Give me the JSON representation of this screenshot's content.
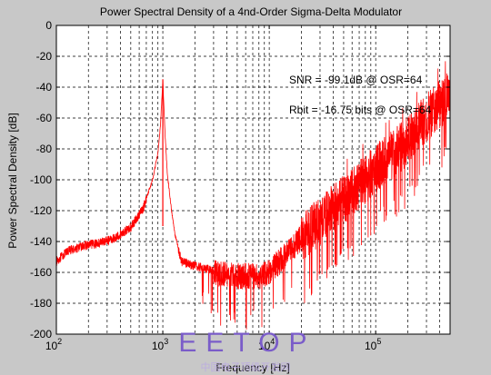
{
  "chart_data": {
    "type": "line",
    "title": "Power Spectral Density of a 4nd-Order Sigma-Delta Modulator",
    "xlabel": "Frequency [Hz]",
    "ylabel": "Power Spectral Density [dB]",
    "xscale": "log",
    "xlim": [
      100,
      500000
    ],
    "ylim": [
      -200,
      0
    ],
    "grid": true,
    "grid_style": "dashed",
    "x_ticks": [
      {
        "value": 100,
        "label": "10",
        "exp": "2"
      },
      {
        "value": 1000,
        "label": "10",
        "exp": "3"
      },
      {
        "value": 10000,
        "label": "10",
        "exp": "4"
      },
      {
        "value": 100000,
        "label": "10",
        "exp": "5"
      }
    ],
    "y_ticks": [
      {
        "value": 0,
        "label": "0"
      },
      {
        "value": -20,
        "label": "-20"
      },
      {
        "value": -40,
        "label": "-40"
      },
      {
        "value": -60,
        "label": "-60"
      },
      {
        "value": -80,
        "label": "-80"
      },
      {
        "value": -100,
        "label": "-100"
      },
      {
        "value": -120,
        "label": "-120"
      },
      {
        "value": -140,
        "label": "-140"
      },
      {
        "value": -160,
        "label": "-160"
      },
      {
        "value": -180,
        "label": "-180"
      },
      {
        "value": -200,
        "label": "-200"
      }
    ],
    "annotations": [
      {
        "text": "SNR = -99.1dB @ OSR=64",
        "x": 40000,
        "y": -35
      },
      {
        "text": "Rbit = -16.75 bits @ OSR=64",
        "x": 40000,
        "y": -55
      }
    ],
    "series": [
      {
        "color": "#ff0000",
        "signal_peak": {
          "x": 1000,
          "y": -35
        },
        "x": [
          100,
          130,
          180,
          250,
          350,
          500,
          650,
          800,
          900,
          950,
          1000,
          1050,
          1100,
          1200,
          1300,
          1500,
          2000,
          3000,
          5000,
          8000,
          10000,
          12000,
          15000,
          20000,
          30000,
          50000,
          80000,
          100000,
          150000,
          200000,
          300000,
          500000
        ],
        "y": [
          -152,
          -145,
          -142,
          -140,
          -137,
          -130,
          -118,
          -100,
          -82,
          -65,
          -35,
          -70,
          -95,
          -118,
          -135,
          -152,
          -155,
          -158,
          -160,
          -160,
          -157,
          -152,
          -145,
          -135,
          -122,
          -108,
          -95,
          -88,
          -78,
          -70,
          -55,
          -40
        ]
      }
    ]
  },
  "watermark": {
    "logo": "EETOP",
    "subtitle": "中国电子顶级开发网"
  }
}
